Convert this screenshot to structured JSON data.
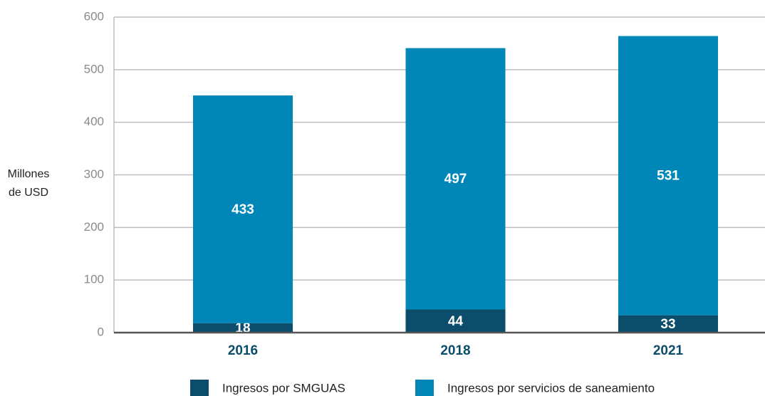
{
  "chart_data": {
    "type": "stacked_bar",
    "y_label": "Millones de USD",
    "categories": [
      "2016",
      "2018",
      "2021"
    ],
    "series": [
      {
        "name": "Ingresos por SMGUAS",
        "color": "#0b4d6b",
        "values": [
          18,
          44,
          33
        ]
      },
      {
        "name": "Ingresos por servicios de saneamiento",
        "color": "#0087b7",
        "values": [
          433,
          497,
          531
        ]
      }
    ],
    "ylim": [
      0,
      600
    ],
    "yticks": [
      0,
      100,
      200,
      300,
      400,
      500,
      600
    ],
    "grid": true
  }
}
